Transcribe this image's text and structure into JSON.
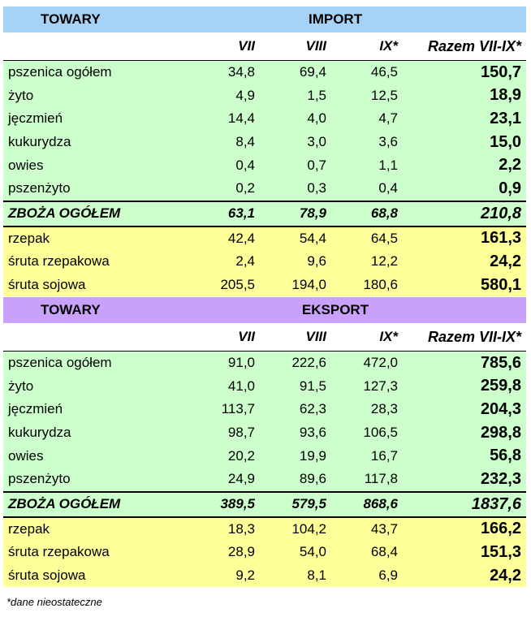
{
  "import": {
    "header": {
      "towary": "TOWARY",
      "title": "IMPORT"
    },
    "cols": {
      "c1": "VII",
      "c2": "VIII",
      "c3": "IX*",
      "c4": "Razem VII-IX*"
    },
    "rows": [
      {
        "name": "pszenica ogółem",
        "v1": "34,8",
        "v2": "69,4",
        "v3": "46,5",
        "tot": "150,7"
      },
      {
        "name": "żyto",
        "v1": "4,9",
        "v2": "1,5",
        "v3": "12,5",
        "tot": "18,9"
      },
      {
        "name": "jęczmień",
        "v1": "14,4",
        "v2": "4,0",
        "v3": "4,7",
        "tot": "23,1"
      },
      {
        "name": "kukurydza",
        "v1": "8,4",
        "v2": "3,0",
        "v3": "3,6",
        "tot": "15,0"
      },
      {
        "name": "owies",
        "v1": "0,4",
        "v2": "0,7",
        "v3": "1,1",
        "tot": "2,2"
      },
      {
        "name": "pszenżyto",
        "v1": "0,2",
        "v2": "0,3",
        "v3": "0,4",
        "tot": "0,9"
      }
    ],
    "sum": {
      "name": "ZBOŻA OGÓŁEM",
      "v1": "63,1",
      "v2": "78,9",
      "v3": "68,8",
      "tot": "210,8"
    },
    "other": [
      {
        "name": "rzepak",
        "v1": "42,4",
        "v2": "54,4",
        "v3": "64,5",
        "tot": "161,3"
      },
      {
        "name": "śruta rzepakowa",
        "v1": "2,4",
        "v2": "9,6",
        "v3": "12,2",
        "tot": "24,2"
      },
      {
        "name": "śruta sojowa",
        "v1": "205,5",
        "v2": "194,0",
        "v3": "180,6",
        "tot": "580,1"
      }
    ]
  },
  "export": {
    "header": {
      "towary": "TOWARY",
      "title": "EKSPORT"
    },
    "cols": {
      "c1": "VII",
      "c2": "VIII",
      "c3": "IX*",
      "c4": "Razem VII-IX*"
    },
    "rows": [
      {
        "name": "pszenica ogółem",
        "v1": "91,0",
        "v2": "222,6",
        "v3": "472,0",
        "tot": "785,6"
      },
      {
        "name": "żyto",
        "v1": "41,0",
        "v2": "91,5",
        "v3": "127,3",
        "tot": "259,8"
      },
      {
        "name": "jęczmień",
        "v1": "113,7",
        "v2": "62,3",
        "v3": "28,3",
        "tot": "204,3"
      },
      {
        "name": "kukurydza",
        "v1": "98,7",
        "v2": "93,6",
        "v3": "106,5",
        "tot": "298,8"
      },
      {
        "name": "owies",
        "v1": "20,2",
        "v2": "19,9",
        "v3": "16,7",
        "tot": "56,8"
      },
      {
        "name": "pszenżyto",
        "v1": "24,9",
        "v2": "89,6",
        "v3": "117,8",
        "tot": "232,3"
      }
    ],
    "sum": {
      "name": "ZBOŻA OGÓŁEM",
      "v1": "389,5",
      "v2": "579,5",
      "v3": "868,6",
      "tot": "1837,6"
    },
    "other": [
      {
        "name": "rzepak",
        "v1": "18,3",
        "v2": "104,2",
        "v3": "43,7",
        "tot": "166,2"
      },
      {
        "name": "śruta rzepakowa",
        "v1": "28,9",
        "v2": "54,0",
        "v3": "68,4",
        "tot": "151,3"
      },
      {
        "name": "śruta sojowa",
        "v1": "9,2",
        "v2": "8,1",
        "v3": "6,9",
        "tot": "24,2"
      }
    ]
  },
  "footnote": "*dane nieostateczne",
  "colors": {
    "import_header": "#a6d3f5",
    "export_header": "#c9a0fa",
    "cereals_bg": "#ccffcc",
    "other_bg": "#ffff99"
  }
}
